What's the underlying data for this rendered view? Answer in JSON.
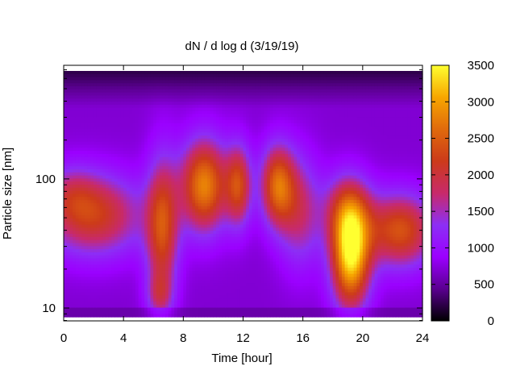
{
  "chart_data": {
    "type": "heatmap",
    "title": "dN / d log d (3/19/19)",
    "xlabel": "Time [hour]",
    "ylabel": "Particle size [nm]",
    "xlim": [
      0,
      24
    ],
    "ylim_log10": [
      0.9,
      2.88
    ],
    "y_scale": "log",
    "x_ticks": [
      "0",
      "4",
      "8",
      "12",
      "16",
      "20",
      "24"
    ],
    "x_tick_values": [
      0,
      4,
      8,
      12,
      16,
      20,
      24
    ],
    "y_ticks": [
      "10",
      "100"
    ],
    "y_tick_values": [
      10,
      100
    ],
    "colorbar": {
      "range": [
        0,
        3500
      ],
      "ticks": [
        "0",
        "500",
        "1000",
        "1500",
        "2000",
        "2500",
        "3000",
        "3500"
      ],
      "tick_values": [
        0,
        500,
        1000,
        1500,
        2000,
        2500,
        3000,
        3500
      ],
      "palette": [
        "#000000",
        "#5a0090",
        "#9b00ff",
        "#8c2ff5",
        "#c82a6a",
        "#cc3a1a",
        "#e06a0c",
        "#f7a600",
        "#ffff30"
      ]
    },
    "background_level": 700,
    "plumes": [
      {
        "time": 2.0,
        "log_size": 1.72,
        "dt": 2.3,
        "dlog": 0.22,
        "amp": 1500
      },
      {
        "time": 0.5,
        "log_size": 1.9,
        "dt": 1.2,
        "dlog": 0.15,
        "amp": 500
      },
      {
        "time": 6.6,
        "log_size": 1.62,
        "dt": 0.75,
        "dlog": 0.38,
        "amp": 1600
      },
      {
        "time": 6.4,
        "log_size": 1.1,
        "dt": 0.6,
        "dlog": 0.12,
        "amp": 700
      },
      {
        "time": 9.4,
        "log_size": 1.95,
        "dt": 1.1,
        "dlog": 0.25,
        "amp": 2100
      },
      {
        "time": 11.7,
        "log_size": 1.95,
        "dt": 0.6,
        "dlog": 0.22,
        "amp": 1500
      },
      {
        "time": 14.3,
        "log_size": 1.95,
        "dt": 0.8,
        "dlog": 0.22,
        "amp": 1800
      },
      {
        "time": 15.8,
        "log_size": 1.75,
        "dt": 1.0,
        "dlog": 0.3,
        "amp": 1000
      },
      {
        "time": 19.2,
        "log_size": 1.4,
        "dt": 0.9,
        "dlog": 0.28,
        "amp": 2600
      },
      {
        "time": 19.0,
        "log_size": 1.75,
        "dt": 1.1,
        "dlog": 0.2,
        "amp": 1200
      },
      {
        "time": 22.5,
        "log_size": 1.6,
        "dt": 1.6,
        "dlog": 0.2,
        "amp": 1700
      }
    ],
    "low_band": {
      "log_size_max": 1.0,
      "level": 300
    },
    "top_band": {
      "log_size_min": 2.55,
      "level": 100
    }
  }
}
